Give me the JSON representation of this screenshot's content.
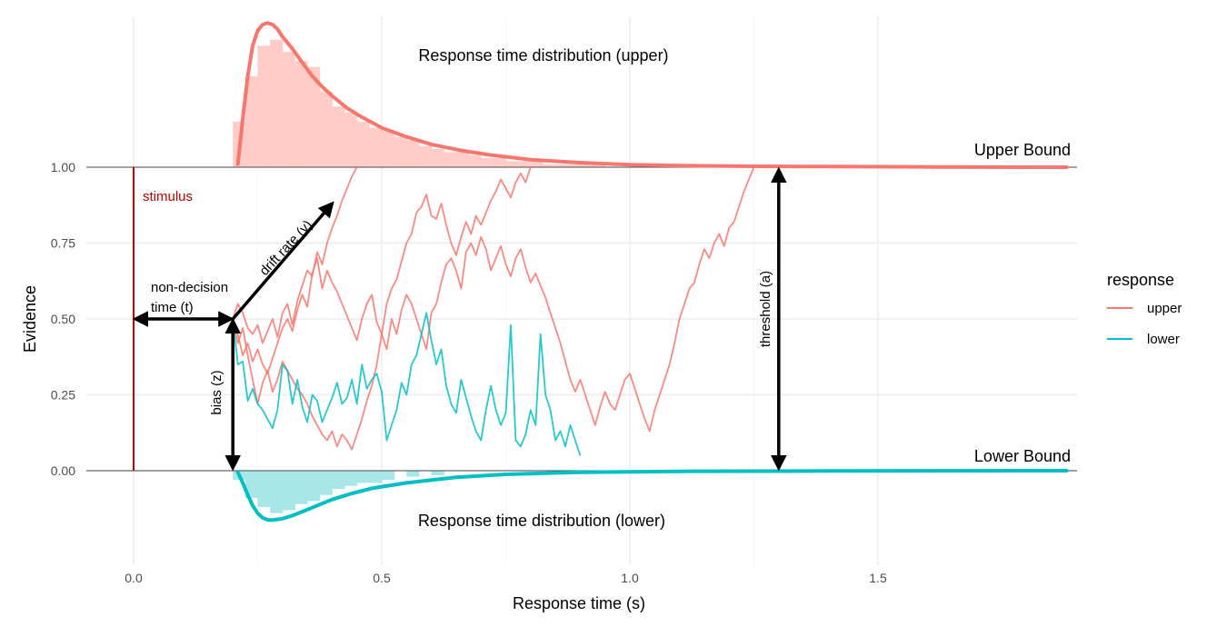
{
  "chart_data": {
    "type": "line",
    "xlabel": "Response time (s)",
    "ylabel": "Evidence",
    "xlim": [
      -0.08,
      1.9
    ],
    "ylim": [
      -0.3,
      1.5
    ],
    "x_ticks": [
      0.0,
      0.5,
      1.0,
      1.5
    ],
    "x_tick_labels": [
      "0.0",
      "0.5",
      "1.0",
      "1.5"
    ],
    "y_ticks": [
      0.0,
      0.25,
      0.5,
      0.75,
      1.0
    ],
    "y_tick_labels": [
      "0.00",
      "0.25",
      "0.50",
      "0.75",
      "1.00"
    ],
    "grid": true,
    "legend": {
      "title": "response",
      "position": "right",
      "entries": [
        {
          "label": "upper",
          "color": "#f8766d"
        },
        {
          "label": "lower",
          "color": "#00bfc4"
        }
      ]
    },
    "parameters": {
      "t": 0.2,
      "z": 0.5,
      "a": 1.0,
      "drift_to": [
        0.4,
        0.88
      ],
      "threshold_x": 1.3
    },
    "labels": {
      "upper_bound": "Upper Bound",
      "lower_bound": "Lower Bound",
      "stimulus": "stimulus",
      "non_decision_1": "non-decision",
      "non_decision_2": "time (t)",
      "drift_rate": "drift rate (v)",
      "bias": "bias (z)",
      "threshold": "threshold (a)",
      "rt_upper": "Response time distribution (upper)",
      "rt_lower": "Response time distribution (lower)"
    },
    "density_upper": {
      "color": "#f8766d",
      "x": [
        0.21,
        0.22,
        0.23,
        0.24,
        0.25,
        0.26,
        0.27,
        0.28,
        0.29,
        0.3,
        0.32,
        0.34,
        0.36,
        0.38,
        0.4,
        0.43,
        0.46,
        0.5,
        0.55,
        0.6,
        0.66,
        0.72,
        0.8,
        0.9,
        1.0,
        1.1,
        1.25,
        1.4,
        1.6,
        1.88
      ],
      "y": [
        1.01,
        1.16,
        1.3,
        1.4,
        1.45,
        1.47,
        1.475,
        1.47,
        1.455,
        1.43,
        1.39,
        1.345,
        1.3,
        1.265,
        1.235,
        1.195,
        1.165,
        1.13,
        1.1,
        1.075,
        1.055,
        1.04,
        1.025,
        1.015,
        1.008,
        1.005,
        1.003,
        1.002,
        1.001,
        1.0
      ]
    },
    "density_lower": {
      "color": "#00bfc4",
      "x": [
        0.21,
        0.22,
        0.23,
        0.24,
        0.25,
        0.26,
        0.27,
        0.28,
        0.3,
        0.32,
        0.34,
        0.37,
        0.4,
        0.44,
        0.48,
        0.55,
        0.65,
        0.75,
        0.9,
        1.1,
        1.4,
        1.88
      ],
      "y": [
        -0.005,
        -0.04,
        -0.08,
        -0.115,
        -0.14,
        -0.155,
        -0.162,
        -0.163,
        -0.158,
        -0.148,
        -0.135,
        -0.115,
        -0.095,
        -0.075,
        -0.058,
        -0.04,
        -0.022,
        -0.012,
        -0.005,
        -0.002,
        -0.001,
        0.0
      ]
    },
    "hist_upper": {
      "bin_width": 0.025,
      "starts": [
        0.2,
        0.225,
        0.25,
        0.275,
        0.3,
        0.325,
        0.35,
        0.375,
        0.4,
        0.425,
        0.45,
        0.475,
        0.5,
        0.525,
        0.55,
        0.575,
        0.6,
        0.625,
        0.65,
        0.675,
        0.7,
        0.725,
        0.75,
        0.775,
        0.8,
        0.825,
        0.85,
        0.875,
        0.9,
        0.925,
        1.0,
        1.2,
        1.4,
        1.6
      ],
      "heights": [
        1.15,
        1.3,
        1.4,
        1.42,
        1.38,
        1.35,
        1.33,
        1.25,
        1.2,
        1.18,
        1.15,
        1.13,
        1.12,
        1.1,
        1.09,
        1.07,
        1.06,
        1.05,
        1.05,
        1.04,
        1.03,
        1.03,
        1.02,
        1.02,
        1.02,
        1.01,
        1.01,
        1.01,
        1.01,
        1.01,
        1.005,
        1.005,
        1.003,
        1.003
      ]
    },
    "hist_lower": {
      "bin_width": 0.025,
      "starts": [
        0.2,
        0.225,
        0.25,
        0.275,
        0.3,
        0.325,
        0.35,
        0.375,
        0.4,
        0.425,
        0.45,
        0.475,
        0.5,
        0.55,
        0.6
      ],
      "heights": [
        -0.03,
        -0.09,
        -0.12,
        -0.14,
        -0.13,
        -0.11,
        -0.1,
        -0.08,
        -0.06,
        -0.05,
        -0.04,
        -0.04,
        -0.03,
        -0.02,
        -0.015
      ]
    },
    "series": [
      {
        "name": "upper",
        "color": "#f8766d",
        "x": [
          0.2,
          0.21,
          0.22,
          0.23,
          0.24,
          0.25,
          0.26,
          0.27,
          0.28,
          0.29,
          0.3,
          0.31,
          0.32,
          0.33,
          0.34,
          0.35,
          0.36,
          0.37,
          0.38,
          0.39,
          0.4,
          0.41,
          0.42,
          0.43,
          0.44,
          0.45
        ],
        "y": [
          0.5,
          0.55,
          0.52,
          0.47,
          0.45,
          0.48,
          0.42,
          0.46,
          0.5,
          0.44,
          0.52,
          0.55,
          0.48,
          0.56,
          0.61,
          0.66,
          0.64,
          0.72,
          0.68,
          0.75,
          0.8,
          0.84,
          0.89,
          0.93,
          0.97,
          1.0
        ]
      },
      {
        "name": "upper",
        "color": "#f8766d",
        "x": [
          0.2,
          0.21,
          0.22,
          0.23,
          0.24,
          0.25,
          0.26,
          0.27,
          0.28,
          0.29,
          0.3,
          0.31,
          0.32,
          0.33,
          0.34,
          0.35,
          0.36,
          0.37,
          0.38,
          0.39,
          0.4,
          0.41,
          0.42,
          0.43,
          0.44,
          0.45,
          0.46,
          0.47,
          0.48,
          0.49,
          0.5,
          0.51,
          0.52,
          0.53,
          0.54,
          0.55,
          0.56,
          0.57,
          0.58,
          0.59,
          0.6,
          0.61,
          0.62,
          0.63,
          0.64,
          0.65,
          0.66,
          0.67,
          0.68,
          0.69,
          0.7,
          0.71,
          0.72,
          0.73,
          0.74,
          0.75,
          0.76,
          0.77,
          0.78,
          0.79,
          0.8
        ],
        "y": [
          0.5,
          0.42,
          0.47,
          0.38,
          0.3,
          0.22,
          0.29,
          0.33,
          0.26,
          0.3,
          0.36,
          0.33,
          0.3,
          0.27,
          0.25,
          0.22,
          0.18,
          0.15,
          0.12,
          0.1,
          0.13,
          0.08,
          0.12,
          0.1,
          0.07,
          0.12,
          0.17,
          0.23,
          0.28,
          0.35,
          0.45,
          0.55,
          0.6,
          0.63,
          0.69,
          0.75,
          0.78,
          0.85,
          0.87,
          0.91,
          0.84,
          0.83,
          0.88,
          0.81,
          0.75,
          0.71,
          0.77,
          0.82,
          0.78,
          0.84,
          0.81,
          0.85,
          0.89,
          0.92,
          0.96,
          0.93,
          0.9,
          0.95,
          0.98,
          0.95,
          1.0
        ]
      },
      {
        "name": "upper",
        "color": "#f8766d",
        "x": [
          0.2,
          0.21,
          0.22,
          0.23,
          0.24,
          0.25,
          0.26,
          0.27,
          0.28,
          0.29,
          0.3,
          0.31,
          0.32,
          0.33,
          0.34,
          0.35,
          0.36,
          0.37,
          0.38,
          0.39,
          0.4,
          0.41,
          0.42,
          0.43,
          0.44,
          0.45,
          0.46,
          0.47,
          0.48,
          0.49,
          0.5,
          0.51,
          0.52,
          0.53,
          0.54,
          0.55,
          0.56,
          0.57,
          0.58,
          0.59,
          0.6,
          0.61,
          0.62,
          0.63,
          0.64,
          0.65,
          0.66,
          0.67,
          0.68,
          0.69,
          0.7,
          0.71,
          0.72,
          0.73,
          0.74,
          0.75,
          0.76,
          0.77,
          0.78,
          0.79,
          0.8,
          0.81,
          0.82,
          0.83,
          0.84,
          0.85,
          0.86,
          0.87,
          0.88,
          0.89,
          0.9,
          0.91,
          0.92,
          0.93,
          0.94,
          0.95,
          0.96,
          0.97,
          0.98,
          0.99,
          1.0,
          1.01,
          1.02,
          1.03,
          1.04,
          1.05,
          1.06,
          1.07,
          1.08,
          1.09,
          1.1,
          1.11,
          1.12,
          1.13,
          1.14,
          1.15,
          1.16,
          1.17,
          1.18,
          1.19,
          1.2,
          1.21,
          1.22,
          1.23,
          1.24,
          1.25
        ],
        "y": [
          0.5,
          0.45,
          0.38,
          0.42,
          0.36,
          0.4,
          0.35,
          0.32,
          0.37,
          0.42,
          0.47,
          0.5,
          0.46,
          0.53,
          0.58,
          0.54,
          0.65,
          0.7,
          0.6,
          0.66,
          0.62,
          0.59,
          0.55,
          0.51,
          0.47,
          0.43,
          0.5,
          0.55,
          0.58,
          0.49,
          0.45,
          0.4,
          0.5,
          0.45,
          0.53,
          0.58,
          0.55,
          0.5,
          0.45,
          0.4,
          0.52,
          0.55,
          0.62,
          0.68,
          0.7,
          0.66,
          0.6,
          0.72,
          0.75,
          0.71,
          0.77,
          0.73,
          0.66,
          0.7,
          0.74,
          0.68,
          0.64,
          0.7,
          0.73,
          0.67,
          0.62,
          0.65,
          0.61,
          0.57,
          0.52,
          0.47,
          0.42,
          0.36,
          0.3,
          0.26,
          0.3,
          0.25,
          0.2,
          0.15,
          0.21,
          0.26,
          0.22,
          0.2,
          0.25,
          0.3,
          0.32,
          0.27,
          0.22,
          0.17,
          0.13,
          0.2,
          0.25,
          0.3,
          0.35,
          0.42,
          0.5,
          0.55,
          0.6,
          0.62,
          0.68,
          0.73,
          0.7,
          0.75,
          0.78,
          0.74,
          0.8,
          0.82,
          0.87,
          0.92,
          0.96,
          1.0
        ]
      },
      {
        "name": "lower",
        "color": "#00bfc4",
        "x": [
          0.2,
          0.21,
          0.22,
          0.23,
          0.24,
          0.25,
          0.26,
          0.27,
          0.28,
          0.29,
          0.3,
          0.31,
          0.32,
          0.33,
          0.34,
          0.35,
          0.36,
          0.37,
          0.38,
          0.39,
          0.4,
          0.41,
          0.42,
          0.43,
          0.44,
          0.45,
          0.46,
          0.47,
          0.48,
          0.49,
          0.5,
          0.51,
          0.52,
          0.53,
          0.54,
          0.55,
          0.56,
          0.57,
          0.58,
          0.59,
          0.6,
          0.61,
          0.62,
          0.63,
          0.64,
          0.65,
          0.66,
          0.67,
          0.68,
          0.69,
          0.7,
          0.71,
          0.72,
          0.73,
          0.74,
          0.75,
          0.76,
          0.77,
          0.78,
          0.79,
          0.8,
          0.81,
          0.82,
          0.83,
          0.84,
          0.85,
          0.86,
          0.87,
          0.88,
          0.89,
          0.9
        ],
        "y": [
          0.5,
          0.35,
          0.36,
          0.23,
          0.27,
          0.22,
          0.2,
          0.17,
          0.14,
          0.2,
          0.35,
          0.33,
          0.22,
          0.3,
          0.21,
          0.16,
          0.25,
          0.23,
          0.16,
          0.2,
          0.24,
          0.29,
          0.22,
          0.24,
          0.3,
          0.22,
          0.35,
          0.27,
          0.3,
          0.32,
          0.26,
          0.1,
          0.15,
          0.2,
          0.29,
          0.25,
          0.35,
          0.38,
          0.45,
          0.52,
          0.43,
          0.35,
          0.4,
          0.28,
          0.22,
          0.19,
          0.3,
          0.24,
          0.18,
          0.13,
          0.1,
          0.2,
          0.28,
          0.2,
          0.15,
          0.19,
          0.48,
          0.1,
          0.08,
          0.12,
          0.2,
          0.15,
          0.45,
          0.25,
          0.2,
          0.1,
          0.13,
          0.08,
          0.15,
          0.1,
          0.05
        ]
      }
    ]
  }
}
